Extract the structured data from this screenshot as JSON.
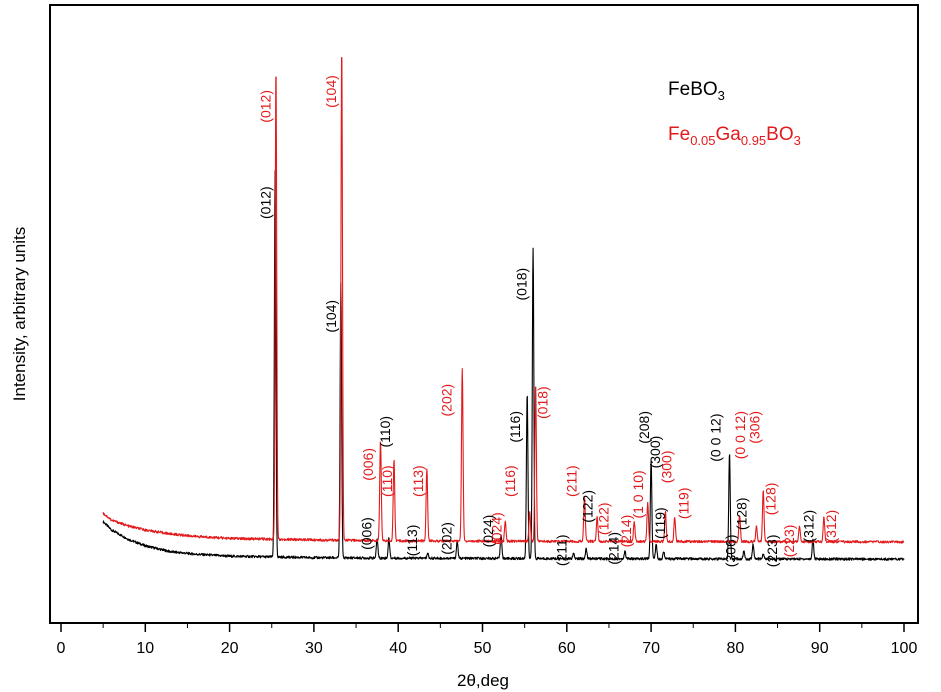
{
  "chart_data": {
    "type": "line",
    "xlabel": "2θ,deg",
    "ylabel": "Intensity, arbitrary units",
    "xlim": [
      0,
      100
    ],
    "xticks": [
      0,
      10,
      20,
      30,
      40,
      50,
      60,
      70,
      80,
      90,
      100
    ],
    "ylim": [
      -0.12,
      1.02
    ],
    "y_tick_labels": "none",
    "grid": false,
    "legend": {
      "placement": "top-right",
      "entries": [
        {
          "parts": [
            [
              "Fe",
              "normal"
            ],
            [
              "BO",
              "normal"
            ],
            [
              "3",
              "sub"
            ]
          ],
          "color": "#000000"
        },
        {
          "parts": [
            [
              "Fe",
              "normal"
            ],
            [
              "0.05",
              "sub"
            ],
            [
              "Ga",
              "normal"
            ],
            [
              "0.95",
              "sub"
            ],
            [
              "BO",
              "normal"
            ],
            [
              "3",
              "sub"
            ]
          ],
          "color": "#e31a1c"
        }
      ]
    },
    "series": [
      {
        "color": "#000000",
        "baseline": -0.015,
        "background": [
          [
            5.0,
            0.061
          ],
          [
            6,
            0.044
          ],
          [
            8,
            0.025
          ],
          [
            10,
            0.012
          ],
          [
            13,
            0.0
          ],
          [
            16,
            -0.005
          ],
          [
            20,
            -0.009
          ],
          [
            30,
            -0.012
          ],
          [
            40,
            -0.013
          ],
          [
            60,
            -0.014
          ],
          [
            100,
            -0.015
          ]
        ],
        "peaks": [
          {
            "x": 25.4,
            "y": 0.78,
            "label": "(012)"
          },
          {
            "x": 33.2,
            "y": 0.555,
            "label": "(104)"
          },
          {
            "x": 37.5,
            "y": 0.04,
            "label": "(006)"
          },
          {
            "x": 38.9,
            "y": 0.04,
            "label": "(110)"
          },
          {
            "x": 43.5,
            "y": 0.01,
            "label": "(113)"
          },
          {
            "x": 47.0,
            "y": 0.035,
            "label": "(202)"
          },
          {
            "x": 52.2,
            "y": 0.05,
            "label": "(024)"
          },
          {
            "x": 55.3,
            "y": 0.335,
            "label": "(116)"
          },
          {
            "x": 56.0,
            "y": 0.63,
            "label": "(018)"
          },
          {
            "x": 60.8,
            "y": 0.01,
            "label": "(211)"
          },
          {
            "x": 62.3,
            "y": 0.02,
            "label": "(122)"
          },
          {
            "x": 66.9,
            "y": 0.015,
            "label": "(214)"
          },
          {
            "x": 70.0,
            "y": 0.2,
            "label": "(208)"
          },
          {
            "x": 70.6,
            "y": 0.03,
            "label": "(300)"
          },
          {
            "x": 71.5,
            "y": 0.015,
            "label": "(119)"
          },
          {
            "x": 79.3,
            "y": 0.215,
            "label": "(0 0 12)"
          },
          {
            "x": 81.0,
            "y": 0.015,
            "label": "(306)"
          },
          {
            "x": 82.1,
            "y": 0.03,
            "label": "(128)"
          },
          {
            "x": 83.3,
            "y": 0.01,
            "label": "(223)"
          },
          {
            "x": 89.2,
            "y": 0.04,
            "label": "(312)"
          }
        ]
      },
      {
        "color": "#e31a1c",
        "baseline": 0.02,
        "background": [
          [
            5.0,
            0.078
          ],
          [
            6,
            0.064
          ],
          [
            8,
            0.052
          ],
          [
            10,
            0.044
          ],
          [
            13,
            0.036
          ],
          [
            16,
            0.031
          ],
          [
            20,
            0.027
          ],
          [
            30,
            0.024
          ],
          [
            40,
            0.022
          ],
          [
            60,
            0.021
          ],
          [
            100,
            0.02
          ]
        ],
        "peaks": [
          {
            "x": 25.5,
            "y": 0.96,
            "label": "(012)"
          },
          {
            "x": 33.3,
            "y": 1.0,
            "label": "(104)"
          },
          {
            "x": 37.9,
            "y": 0.205,
            "label": "(006)"
          },
          {
            "x": 39.5,
            "y": 0.165,
            "label": "(110)"
          },
          {
            "x": 43.4,
            "y": 0.146,
            "label": "(113)"
          },
          {
            "x": 47.6,
            "y": 0.35,
            "label": "(202)"
          },
          {
            "x": 52.7,
            "y": 0.04,
            "label": "(024)"
          },
          {
            "x": 55.6,
            "y": 0.06,
            "label": "(116)"
          },
          {
            "x": 56.3,
            "y": 0.32,
            "label": "(018)"
          },
          {
            "x": 62.1,
            "y": 0.09,
            "label": "(211)"
          },
          {
            "x": 63.6,
            "y": 0.05,
            "label": "(122)"
          },
          {
            "x": 68.0,
            "y": 0.04,
            "label": "(214)"
          },
          {
            "x": 69.6,
            "y": 0.08,
            "label": "(1 0 10)"
          },
          {
            "x": 71.7,
            "y": 0.06,
            "label": "(300)"
          },
          {
            "x": 72.8,
            "y": 0.05,
            "label": "(119)"
          },
          {
            "x": 80.5,
            "y": 0.055,
            "label": "(0 0 12)"
          },
          {
            "x": 82.5,
            "y": 0.03,
            "label": "(306)"
          },
          {
            "x": 83.3,
            "y": 0.105,
            "label": "(128)"
          },
          {
            "x": 87.6,
            "y": 0.03,
            "label": "(223)"
          },
          {
            "x": 90.5,
            "y": 0.05,
            "label": "(312)"
          }
        ]
      }
    ],
    "annotations": [
      {
        "text": "(012)",
        "color": "#000000",
        "x": 24.4,
        "y": 0.74
      },
      {
        "text": "(104)",
        "color": "#000000",
        "x": 32.2,
        "y": 0.51
      },
      {
        "text": "(006)",
        "color": "#000000",
        "x": 36.4,
        "y": 0.07
      },
      {
        "text": "(110)",
        "color": "#000000",
        "x": 38.6,
        "y": 0.275
      },
      {
        "text": "(113)",
        "color": "#000000",
        "x": 41.8,
        "y": 0.055
      },
      {
        "text": "(202)",
        "color": "#000000",
        "x": 45.9,
        "y": 0.06
      },
      {
        "text": "(024)",
        "color": "#000000",
        "x": 50.8,
        "y": 0.075
      },
      {
        "text": "(116)",
        "color": "#000000",
        "x": 54.0,
        "y": 0.285
      },
      {
        "text": "(018)",
        "color": "#000000",
        "x": 54.8,
        "y": 0.575
      },
      {
        "text": "(211)",
        "color": "#000000",
        "x": 59.5,
        "y": 0.035
      },
      {
        "text": "(122)",
        "color": "#000000",
        "x": 62.6,
        "y": 0.125
      },
      {
        "text": "(214)",
        "color": "#000000",
        "x": 65.7,
        "y": 0.04
      },
      {
        "text": "(208)",
        "color": "#000000",
        "x": 69.3,
        "y": 0.285
      },
      {
        "text": "(300)",
        "color": "#000000",
        "x": 70.6,
        "y": 0.235
      },
      {
        "text": "(119)",
        "color": "#000000",
        "x": 71.2,
        "y": 0.09
      },
      {
        "text": "(0 0 12)",
        "color": "#000000",
        "x": 77.8,
        "y": 0.28
      },
      {
        "text": "(306)",
        "color": "#000000",
        "x": 79.6,
        "y": 0.035
      },
      {
        "text": "(128)",
        "color": "#000000",
        "x": 80.9,
        "y": 0.11
      },
      {
        "text": "(223)",
        "color": "#000000",
        "x": 84.5,
        "y": 0.035
      },
      {
        "text": "(312)",
        "color": "#000000",
        "x": 88.8,
        "y": 0.085
      },
      {
        "text": "(012)",
        "color": "#e31a1c",
        "x": 24.4,
        "y": 0.935
      },
      {
        "text": "(104)",
        "color": "#e31a1c",
        "x": 32.2,
        "y": 0.965
      },
      {
        "text": "(006)",
        "color": "#e31a1c",
        "x": 36.6,
        "y": 0.21
      },
      {
        "text": "(110)",
        "color": "#e31a1c",
        "x": 38.8,
        "y": 0.175
      },
      {
        "text": "(113)",
        "color": "#e31a1c",
        "x": 42.5,
        "y": 0.175
      },
      {
        "text": "(202)",
        "color": "#e31a1c",
        "x": 45.9,
        "y": 0.34
      },
      {
        "text": "(024)",
        "color": "#e31a1c",
        "x": 51.8,
        "y": 0.08
      },
      {
        "text": "(116)",
        "color": "#e31a1c",
        "x": 53.4,
        "y": 0.175
      },
      {
        "text": "(018)",
        "color": "#e31a1c",
        "x": 57.3,
        "y": 0.335
      },
      {
        "text": "(211)",
        "color": "#e31a1c",
        "x": 60.7,
        "y": 0.175
      },
      {
        "text": "(122)",
        "color": "#e31a1c",
        "x": 64.5,
        "y": 0.1
      },
      {
        "text": "(214)",
        "color": "#e31a1c",
        "x": 67.2,
        "y": 0.075
      },
      {
        "text": "(1 0 10)",
        "color": "#e31a1c",
        "x": 68.6,
        "y": 0.165
      },
      {
        "text": "(300)",
        "color": "#e31a1c",
        "x": 72.0,
        "y": 0.205
      },
      {
        "text": "(119)",
        "color": "#e31a1c",
        "x": 74.0,
        "y": 0.13
      },
      {
        "text": "(0 0 12)",
        "color": "#e31a1c",
        "x": 80.7,
        "y": 0.285
      },
      {
        "text": "(306)",
        "color": "#e31a1c",
        "x": 82.4,
        "y": 0.285
      },
      {
        "text": "(128)",
        "color": "#e31a1c",
        "x": 84.3,
        "y": 0.14
      },
      {
        "text": "(223)",
        "color": "#e31a1c",
        "x": 86.5,
        "y": 0.055
      },
      {
        "text": "(312)",
        "color": "#e31a1c",
        "x": 91.5,
        "y": 0.085
      }
    ]
  }
}
